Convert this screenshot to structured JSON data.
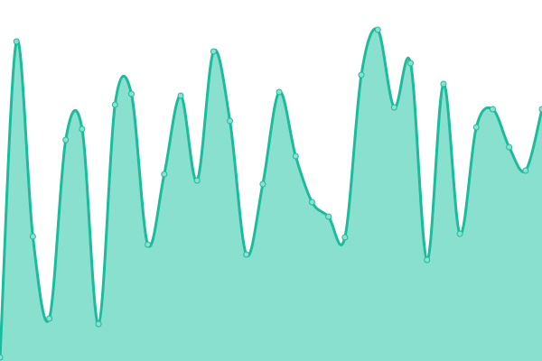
{
  "chart_data": {
    "type": "area",
    "title": "",
    "xlabel": "",
    "ylabel": "",
    "x": [
      0,
      1,
      2,
      3,
      4,
      5,
      6,
      7,
      8,
      9,
      10,
      11,
      12,
      13,
      14,
      15,
      16,
      17,
      18,
      19,
      20,
      21,
      22,
      23,
      24,
      25,
      26,
      27,
      28,
      29,
      30,
      31,
      32,
      33
    ],
    "values": [
      4,
      354,
      138,
      47,
      245,
      257,
      41,
      284,
      296,
      129,
      207,
      294,
      200,
      343,
      266,
      118,
      196,
      298,
      227,
      176,
      160,
      137,
      317,
      367,
      281,
      330,
      112,
      307,
      141,
      259,
      279,
      237,
      211,
      279
    ],
    "ylim": [
      0,
      400
    ],
    "grid": false,
    "axes_visible": false,
    "smooth": true,
    "markers": true,
    "colors": {
      "line": "#1abc9c",
      "fill": "#89e0cf",
      "marker": "#8de0d0"
    }
  }
}
